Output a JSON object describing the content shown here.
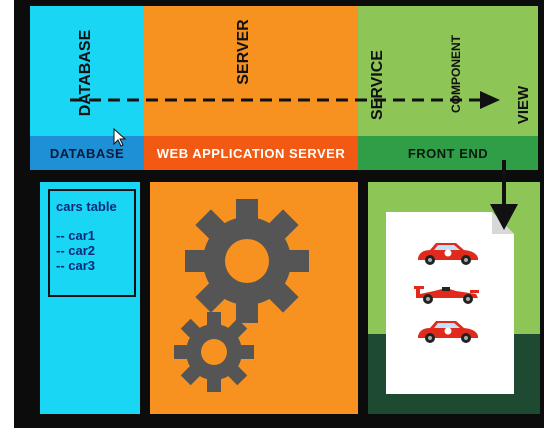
{
  "top_labels": {
    "database": "DATABASE",
    "server": "SERVER",
    "service": "SERVICE",
    "component": "COMPONENT",
    "view": "VIEW"
  },
  "bands": {
    "database": "DATABASE",
    "web_app_server": "WEB APPLICATION SERVER",
    "front_end": "FRONT END"
  },
  "cars_table": {
    "title": "cars table",
    "rows": [
      "-- car1",
      "-- car2",
      "-- car3"
    ]
  },
  "colors": {
    "cyan": "#18d6f4",
    "orange": "#f7911f",
    "green_light": "#8dc556",
    "green_dark": "#2f9e46",
    "blue_band": "#1e90d6",
    "red_band": "#f25a14",
    "dark_green": "#1d4a31",
    "gear": "#555555",
    "car_red": "#e22a1c"
  },
  "icons": [
    "gear-icon",
    "sports-car-icon",
    "race-car-icon",
    "document-icon",
    "cursor-icon"
  ]
}
